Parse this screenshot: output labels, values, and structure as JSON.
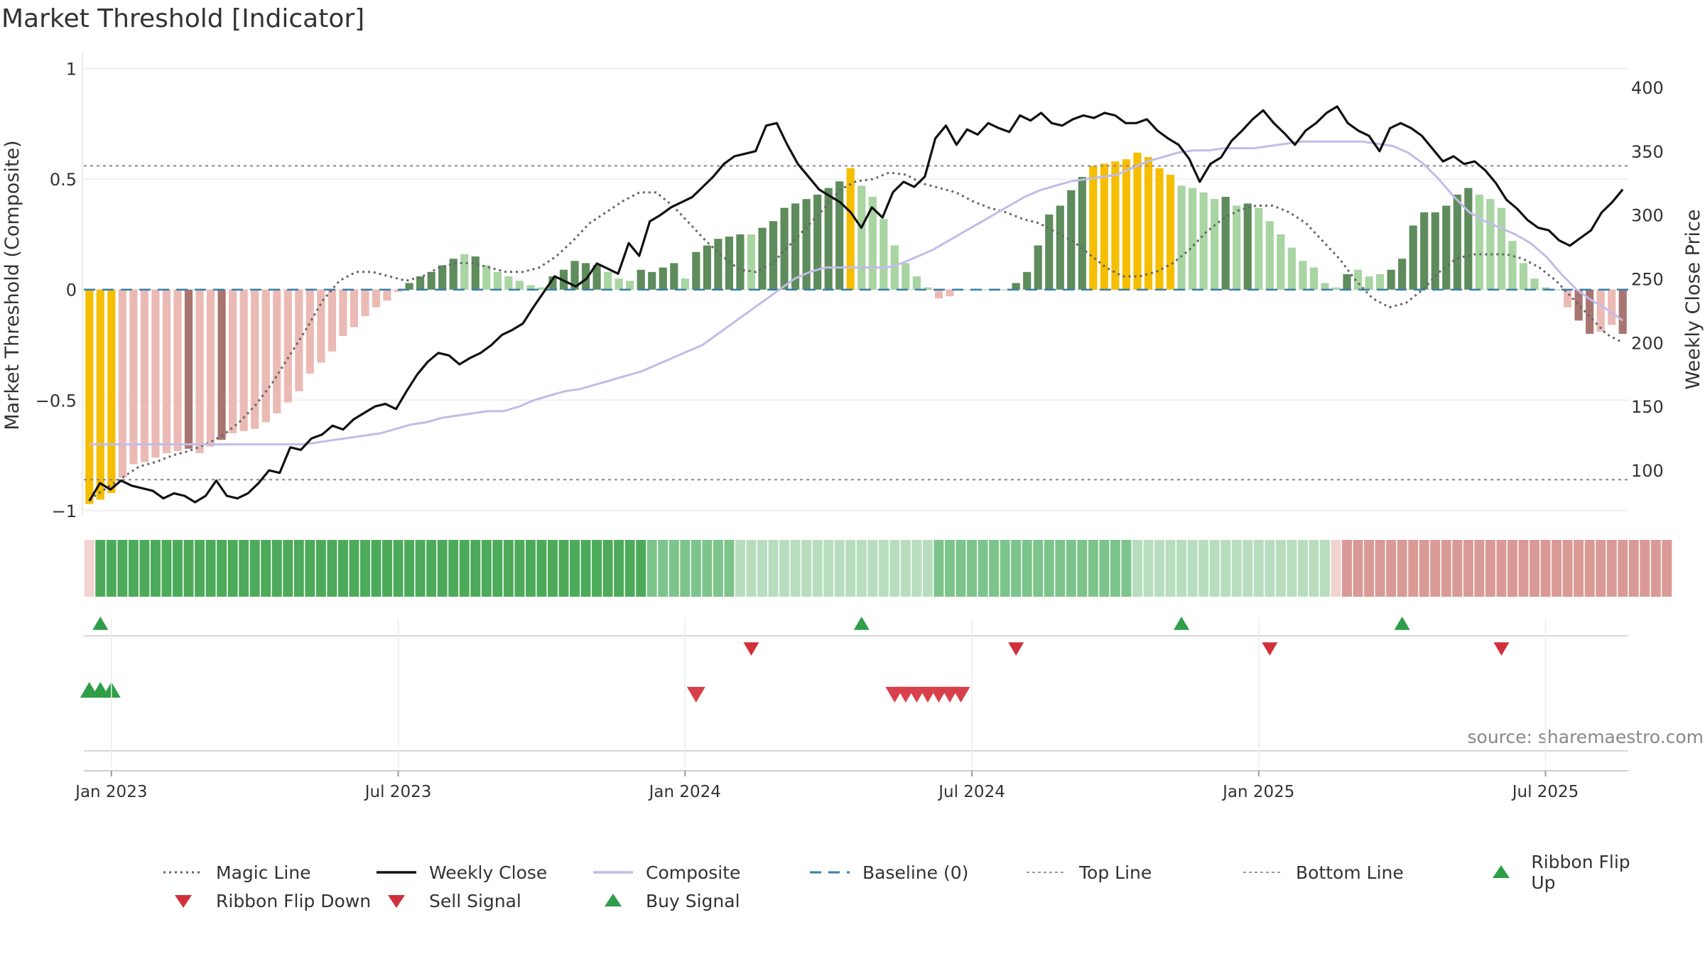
{
  "title": "Market Threshold [Indicator]",
  "source": "source: sharemaestro.com",
  "colors": {
    "accent_gold": "#F5BE00",
    "bull_strong": "#5E8C5C",
    "bull_light": "#A8D5A2",
    "bear_strong": "#A97570",
    "bear_light": "#EBBAB5",
    "close_line": "#111111",
    "composite_line": "#C2BCE8",
    "magic_line": "#666666",
    "baseline": "#3A7FA8",
    "signal_green": "#2E9E48",
    "signal_red": "#D0303A"
  },
  "legend": [
    {
      "label": "Magic Line",
      "style": "dotted-gray"
    },
    {
      "label": "Weekly Close",
      "style": "solid-black"
    },
    {
      "label": "Composite",
      "style": "solid-lavender"
    },
    {
      "label": "Baseline (0)",
      "style": "dashed-blue"
    },
    {
      "label": "Top Line",
      "style": "dotted-lightgray"
    },
    {
      "label": "Bottom Line",
      "style": "dotted-lightgray"
    },
    {
      "label": "Ribbon Flip Up",
      "style": "triangle-up-green"
    },
    {
      "label": "Ribbon Flip Down",
      "style": "triangle-down-red"
    },
    {
      "label": "Sell Signal",
      "style": "triangle-down-red"
    },
    {
      "label": "Buy Signal",
      "style": "triangle-up-green"
    }
  ],
  "chart_data": {
    "type": "bar",
    "title": "Market Threshold [Indicator]",
    "ylabel": "Market Threshold (Composite)",
    "y2label": "Weekly Close Price",
    "ylim": [
      -1.02,
      1.06
    ],
    "y2lim": [
      65,
      425
    ],
    "y_ticks": [
      1,
      0.5,
      0,
      -0.5,
      -1
    ],
    "y_tick_labels": [
      "1",
      "0.5",
      "0",
      "−0.5",
      "−1"
    ],
    "y2_ticks": [
      400,
      350,
      300,
      250,
      200,
      150,
      100
    ],
    "x_ticks": [
      "Jan 2023",
      "Jul 2023",
      "Jan 2024",
      "Jul 2024",
      "Jan 2025",
      "Jul 2025"
    ],
    "top_line": 0.56,
    "bottom_line": -0.86,
    "baseline": 0,
    "weeks": 140,
    "composite_bars": [
      -0.97,
      -0.95,
      -0.92,
      -0.85,
      -0.79,
      -0.78,
      -0.76,
      -0.74,
      -0.73,
      -0.72,
      -0.74,
      -0.71,
      -0.68,
      -0.65,
      -0.64,
      -0.63,
      -0.6,
      -0.56,
      -0.51,
      -0.46,
      -0.38,
      -0.33,
      -0.28,
      -0.21,
      -0.17,
      -0.12,
      -0.08,
      -0.05,
      -0.01,
      0.03,
      0.06,
      0.08,
      0.11,
      0.14,
      0.16,
      0.15,
      0.11,
      0.08,
      0.06,
      0.04,
      0.02,
      0.01,
      0.06,
      0.09,
      0.13,
      0.12,
      0.11,
      0.08,
      0.05,
      0.04,
      0.09,
      0.08,
      0.1,
      0.12,
      0.05,
      0.17,
      0.2,
      0.23,
      0.24,
      0.25,
      0.25,
      0.28,
      0.31,
      0.37,
      0.39,
      0.41,
      0.43,
      0.46,
      0.49,
      0.55,
      0.47,
      0.42,
      0.32,
      0.2,
      0.12,
      0.06,
      0.01,
      -0.04,
      -0.03,
      0.0,
      0.0,
      0.0,
      0.0,
      0.0,
      0.03,
      0.08,
      0.2,
      0.34,
      0.38,
      0.45,
      0.51,
      0.56,
      0.57,
      0.58,
      0.59,
      0.62,
      0.6,
      0.55,
      0.52,
      0.47,
      0.46,
      0.44,
      0.41,
      0.42,
      0.38,
      0.39,
      0.37,
      0.31,
      0.25,
      0.19,
      0.13,
      0.1,
      0.03,
      0.01,
      0.07,
      0.09,
      0.06,
      0.07,
      0.09,
      0.14,
      0.29,
      0.35,
      0.35,
      0.38,
      0.43,
      0.46,
      0.43,
      0.41,
      0.37,
      0.22,
      0.12,
      0.05,
      0.01,
      0.0,
      -0.08,
      -0.14,
      -0.2,
      -0.19,
      -0.16,
      -0.2
    ],
    "bar_categories": [
      "gold",
      "gold",
      "gold",
      "bear_light",
      "bear_light",
      "bear_light",
      "bear_light",
      "bear_light",
      "bear_light",
      "bear_strong",
      "bear_light",
      "bear_light",
      "bear_strong",
      "bear_light",
      "bear_light",
      "bear_light",
      "bear_light",
      "bear_light",
      "bear_light",
      "bear_light",
      "bear_light",
      "bear_light",
      "bear_light",
      "bear_light",
      "bear_light",
      "bear_light",
      "bear_light",
      "bear_light",
      "bear_light",
      "bull_strong",
      "bull_strong",
      "bull_strong",
      "bull_strong",
      "bull_strong",
      "bull_light",
      "bull_strong",
      "bull_light",
      "bull_light",
      "bull_light",
      "bull_light",
      "bull_light",
      "bull_light",
      "bull_strong",
      "bull_strong",
      "bull_strong",
      "bull_strong",
      "bull_strong",
      "bull_light",
      "bull_light",
      "bull_light",
      "bull_strong",
      "bull_strong",
      "bull_strong",
      "bull_strong",
      "bull_light",
      "bull_strong",
      "bull_strong",
      "bull_strong",
      "bull_strong",
      "bull_strong",
      "bull_light",
      "bull_strong",
      "bull_strong",
      "bull_strong",
      "bull_strong",
      "bull_strong",
      "bull_strong",
      "bull_strong",
      "bull_strong",
      "gold",
      "bull_light",
      "bull_light",
      "bull_light",
      "bull_light",
      "bull_light",
      "bull_light",
      "bull_light",
      "bear_light",
      "bear_light",
      "bull_light",
      "bull_light",
      "bull_light",
      "bull_light",
      "bull_light",
      "bull_strong",
      "bull_strong",
      "bull_strong",
      "bull_strong",
      "bull_strong",
      "bull_strong",
      "bull_strong",
      "gold",
      "gold",
      "gold",
      "gold",
      "gold",
      "gold",
      "gold",
      "gold",
      "bull_light",
      "bull_light",
      "bull_light",
      "bull_light",
      "bull_strong",
      "bull_light",
      "bull_strong",
      "bull_light",
      "bull_light",
      "bull_light",
      "bull_light",
      "bull_light",
      "bull_light",
      "bull_light",
      "bull_light",
      "bull_strong",
      "bull_light",
      "bull_light",
      "bull_light",
      "bull_strong",
      "bull_strong",
      "bull_strong",
      "bull_strong",
      "bull_strong",
      "bull_strong",
      "bull_strong",
      "bull_strong",
      "bull_light",
      "bull_light",
      "bull_light",
      "bull_light",
      "bull_light",
      "bull_light",
      "bull_light",
      "bull_light",
      "bear_light",
      "bear_strong",
      "bear_strong",
      "bear_light",
      "bear_light",
      "bear_strong"
    ],
    "weekly_close": [
      76,
      90,
      85,
      92,
      88,
      86,
      84,
      78,
      82,
      80,
      75,
      80,
      92,
      80,
      78,
      82,
      90,
      100,
      98,
      118,
      116,
      125,
      128,
      135,
      132,
      140,
      145,
      150,
      152,
      148,
      162,
      175,
      185,
      192,
      190,
      183,
      188,
      192,
      198,
      206,
      210,
      215,
      228,
      240,
      252,
      248,
      244,
      250,
      262,
      258,
      254,
      278,
      268,
      295,
      300,
      306,
      310,
      314,
      322,
      330,
      340,
      346,
      348,
      350,
      370,
      372,
      355,
      340,
      330,
      320,
      315,
      310,
      302,
      290,
      306,
      298,
      318,
      326,
      322,
      330,
      360,
      370,
      355,
      367,
      363,
      372,
      368,
      365,
      378,
      374,
      380,
      372,
      370,
      375,
      378,
      376,
      380,
      378,
      372,
      372,
      375,
      366,
      360,
      355,
      344,
      326,
      340,
      345,
      358,
      366,
      375,
      382,
      372,
      364,
      355,
      366,
      372,
      380,
      385,
      372,
      366,
      362,
      350,
      368,
      372,
      368,
      362,
      352,
      342,
      346,
      340,
      342,
      335,
      325,
      312,
      305,
      296,
      290,
      288,
      280,
      276,
      282,
      288,
      302,
      310,
      320
    ],
    "composite": [
      -0.7,
      -0.7,
      -0.7,
      -0.7,
      -0.7,
      -0.7,
      -0.7,
      -0.7,
      -0.7,
      -0.7,
      -0.7,
      -0.7,
      -0.7,
      -0.7,
      -0.7,
      -0.69,
      -0.68,
      -0.67,
      -0.66,
      -0.65,
      -0.63,
      -0.61,
      -0.6,
      -0.58,
      -0.57,
      -0.56,
      -0.55,
      -0.55,
      -0.53,
      -0.5,
      -0.48,
      -0.46,
      -0.45,
      -0.43,
      -0.41,
      -0.39,
      -0.37,
      -0.34,
      -0.31,
      -0.28,
      -0.25,
      -0.2,
      -0.15,
      -0.1,
      -0.05,
      0.0,
      0.05,
      0.08,
      0.1,
      0.1,
      0.1,
      0.1,
      0.1,
      0.12,
      0.15,
      0.18,
      0.22,
      0.26,
      0.3,
      0.34,
      0.38,
      0.42,
      0.45,
      0.47,
      0.49,
      0.5,
      0.51,
      0.52,
      0.55,
      0.58,
      0.6,
      0.62,
      0.63,
      0.63,
      0.64,
      0.64,
      0.64,
      0.65,
      0.66,
      0.67,
      0.67,
      0.67,
      0.67,
      0.67,
      0.66,
      0.65,
      0.62,
      0.57,
      0.5,
      0.42,
      0.35,
      0.31,
      0.28,
      0.25,
      0.21,
      0.15,
      0.07,
      0.0,
      -0.05,
      -0.09,
      -0.14
    ],
    "magic_line": [
      -0.95,
      -0.9,
      -0.85,
      -0.8,
      -0.78,
      -0.75,
      -0.73,
      -0.7,
      -0.66,
      -0.6,
      -0.52,
      -0.42,
      -0.3,
      -0.18,
      -0.05,
      0.04,
      0.08,
      0.08,
      0.06,
      0.04,
      0.06,
      0.1,
      0.12,
      0.12,
      0.1,
      0.08,
      0.08,
      0.1,
      0.15,
      0.22,
      0.3,
      0.35,
      0.4,
      0.44,
      0.44,
      0.38,
      0.3,
      0.22,
      0.15,
      0.09,
      0.08,
      0.12,
      0.2,
      0.28,
      0.36,
      0.45,
      0.49,
      0.5,
      0.53,
      0.52,
      0.48,
      0.46,
      0.44,
      0.4,
      0.37,
      0.35,
      0.32,
      0.3,
      0.26,
      0.22,
      0.16,
      0.1,
      0.06,
      0.06,
      0.08,
      0.12,
      0.18,
      0.26,
      0.32,
      0.36,
      0.38,
      0.38,
      0.35,
      0.3,
      0.22,
      0.14,
      0.04,
      -0.04,
      -0.08,
      -0.06,
      0.0,
      0.08,
      0.14,
      0.16,
      0.16,
      0.16,
      0.14,
      0.1,
      0.04,
      -0.04,
      -0.12,
      -0.2,
      -0.24
    ],
    "ribbon": [
      -1,
      3,
      3,
      3,
      3,
      3,
      3,
      3,
      3,
      3,
      3,
      3,
      3,
      3,
      3,
      3,
      3,
      3,
      3,
      3,
      3,
      3,
      3,
      3,
      3,
      3,
      3,
      3,
      3,
      3,
      3,
      3,
      3,
      3,
      3,
      3,
      3,
      3,
      3,
      3,
      3,
      3,
      3,
      3,
      3,
      3,
      3,
      3,
      3,
      3,
      3,
      2,
      2,
      2,
      2,
      2,
      2,
      2,
      2,
      1,
      1,
      1,
      1,
      1,
      1,
      1,
      1,
      1,
      1,
      1,
      1,
      1,
      1,
      1,
      1,
      1,
      1,
      2,
      2,
      2,
      2,
      2,
      2,
      2,
      2,
      2,
      2,
      2,
      2,
      2,
      2,
      2,
      2,
      2,
      2,
      1,
      1,
      1,
      1,
      1,
      1,
      1,
      1,
      1,
      1,
      1,
      1,
      1,
      1,
      1,
      1,
      1,
      1,
      -1,
      -2,
      -2,
      -2,
      -2,
      -2,
      -2,
      -2,
      -2,
      -2,
      -2,
      -2,
      -2,
      -2,
      -2,
      -2,
      -2,
      -2,
      -2,
      -2,
      -2,
      -2,
      -2,
      -2,
      -2,
      -2,
      -2,
      -2,
      -2,
      -2,
      -2
    ],
    "ribbon_flip_up_weeks": [
      1,
      70,
      99,
      119
    ],
    "ribbon_flip_down_weeks": [
      60,
      84,
      107,
      128
    ],
    "buy_signal_weeks": [
      0,
      1,
      2
    ],
    "sell_signal_weeks": [
      55,
      73,
      74,
      75,
      76,
      77,
      78,
      79
    ]
  }
}
